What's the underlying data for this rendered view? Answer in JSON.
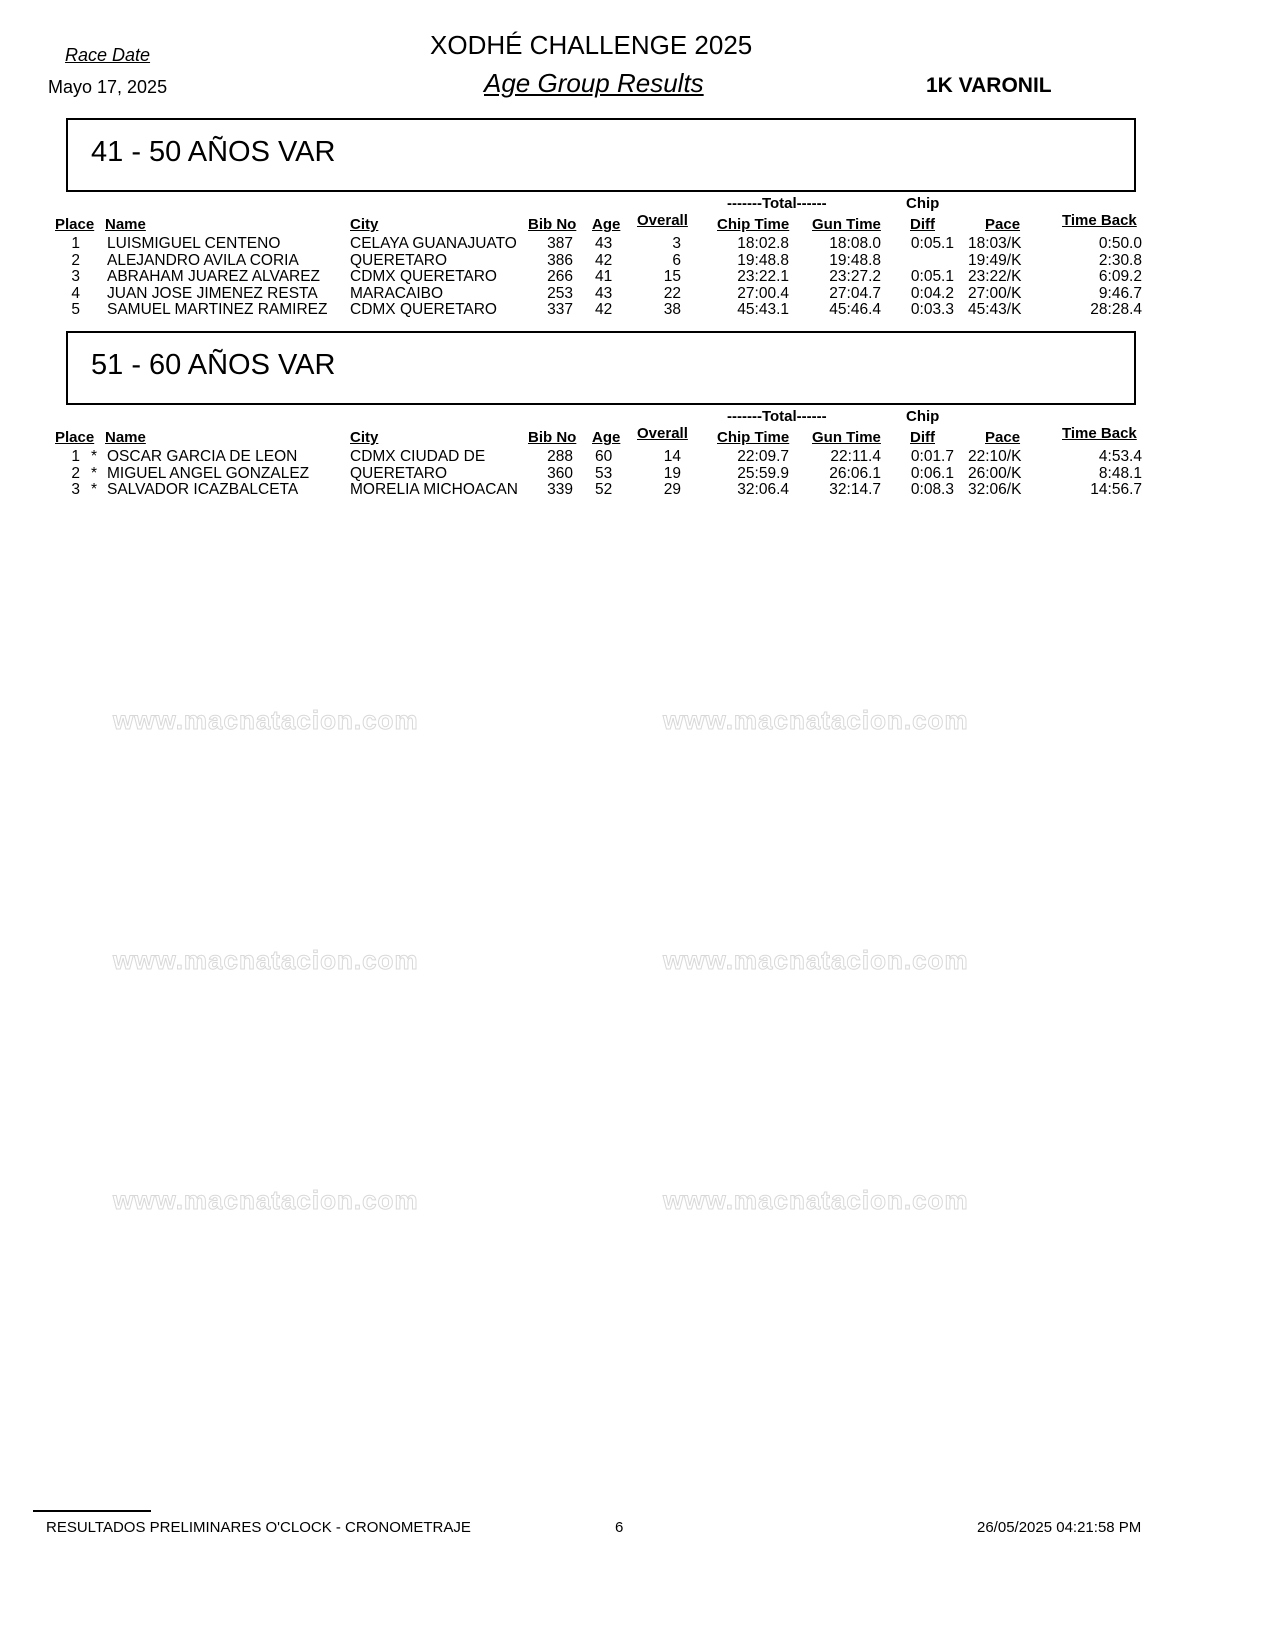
{
  "header": {
    "race_date_label": "Race Date",
    "race_date": "Mayo 17, 2025",
    "title": "XODHÉ CHALLENGE 2025",
    "subtitle": "Age Group Results",
    "category": "1K VARONIL"
  },
  "watermark": "www.macnatacion.com",
  "columns": {
    "total_group": "-------Total------",
    "chip_group": "Chip",
    "place": "Place",
    "name": "Name",
    "city": "City",
    "bib": "Bib No",
    "age": "Age",
    "overall": "Overall",
    "chip_time": "Chip Time",
    "gun_time": "Gun Time",
    "diff": "Diff",
    "pace": "Pace",
    "time_back": "Time Back"
  },
  "groups": [
    {
      "title": "41 - 50 AÑOS VAR",
      "rows": [
        {
          "place": "1",
          "mark": "",
          "name": "LUISMIGUEL CENTENO",
          "city": "CELAYA GUANAJUATO",
          "bib": "387",
          "age": "43",
          "overall": "3",
          "chip_time": "18:02.8",
          "gun_time": "18:08.0",
          "diff": "0:05.1",
          "pace": "18:03/K",
          "time_back": "0:50.0"
        },
        {
          "place": "2",
          "mark": "",
          "name": "ALEJANDRO AVILA CORIA",
          "city": "QUERETARO",
          "bib": "386",
          "age": "42",
          "overall": "6",
          "chip_time": "19:48.8",
          "gun_time": "19:48.8",
          "diff": "",
          "pace": "19:49/K",
          "time_back": "2:30.8"
        },
        {
          "place": "3",
          "mark": "",
          "name": "ABRAHAM JUAREZ ALVAREZ",
          "city": "CDMX  QUERETARO",
          "bib": "266",
          "age": "41",
          "overall": "15",
          "chip_time": "23:22.1",
          "gun_time": "23:27.2",
          "diff": "0:05.1",
          "pace": "23:22/K",
          "time_back": "6:09.2"
        },
        {
          "place": "4",
          "mark": "",
          "name": "JUAN JOSE JIMENEZ RESTA",
          "city": "MARACAIBO",
          "bib": "253",
          "age": "43",
          "overall": "22",
          "chip_time": "27:00.4",
          "gun_time": "27:04.7",
          "diff": "0:04.2",
          "pace": "27:00/K",
          "time_back": "9:46.7"
        },
        {
          "place": "5",
          "mark": "",
          "name": "SAMUEL MARTINEZ RAMIREZ",
          "city": "CDMX  QUERETARO",
          "bib": "337",
          "age": "42",
          "overall": "38",
          "chip_time": "45:43.1",
          "gun_time": "45:46.4",
          "diff": "0:03.3",
          "pace": "45:43/K",
          "time_back": "28:28.4"
        }
      ]
    },
    {
      "title": "51 - 60 AÑOS VAR",
      "rows": [
        {
          "place": "1",
          "mark": "*",
          "name": "OSCAR GARCIA DE LEON",
          "city": "CDMX  CIUDAD DE",
          "bib": "288",
          "age": "60",
          "overall": "14",
          "chip_time": "22:09.7",
          "gun_time": "22:11.4",
          "diff": "0:01.7",
          "pace": "22:10/K",
          "time_back": "4:53.4"
        },
        {
          "place": "2",
          "mark": "*",
          "name": "MIGUEL ANGEL GONZALEZ",
          "city": "QUERETARO",
          "bib": "360",
          "age": "53",
          "overall": "19",
          "chip_time": "25:59.9",
          "gun_time": "26:06.1",
          "diff": "0:06.1",
          "pace": "26:00/K",
          "time_back": "8:48.1"
        },
        {
          "place": "3",
          "mark": "*",
          "name": "SALVADOR ICAZBALCETA",
          "city": "MORELIA MICHOACAN",
          "bib": "339",
          "age": "52",
          "overall": "29",
          "chip_time": "32:06.4",
          "gun_time": "32:14.7",
          "diff": "0:08.3",
          "pace": "32:06/K",
          "time_back": "14:56.7"
        }
      ]
    }
  ],
  "footer": {
    "left": "RESULTADOS PRELIMINARES O'CLOCK - CRONOMETRAJE",
    "page": "6",
    "timestamp": "26/05/2025 04:21:58 PM"
  }
}
